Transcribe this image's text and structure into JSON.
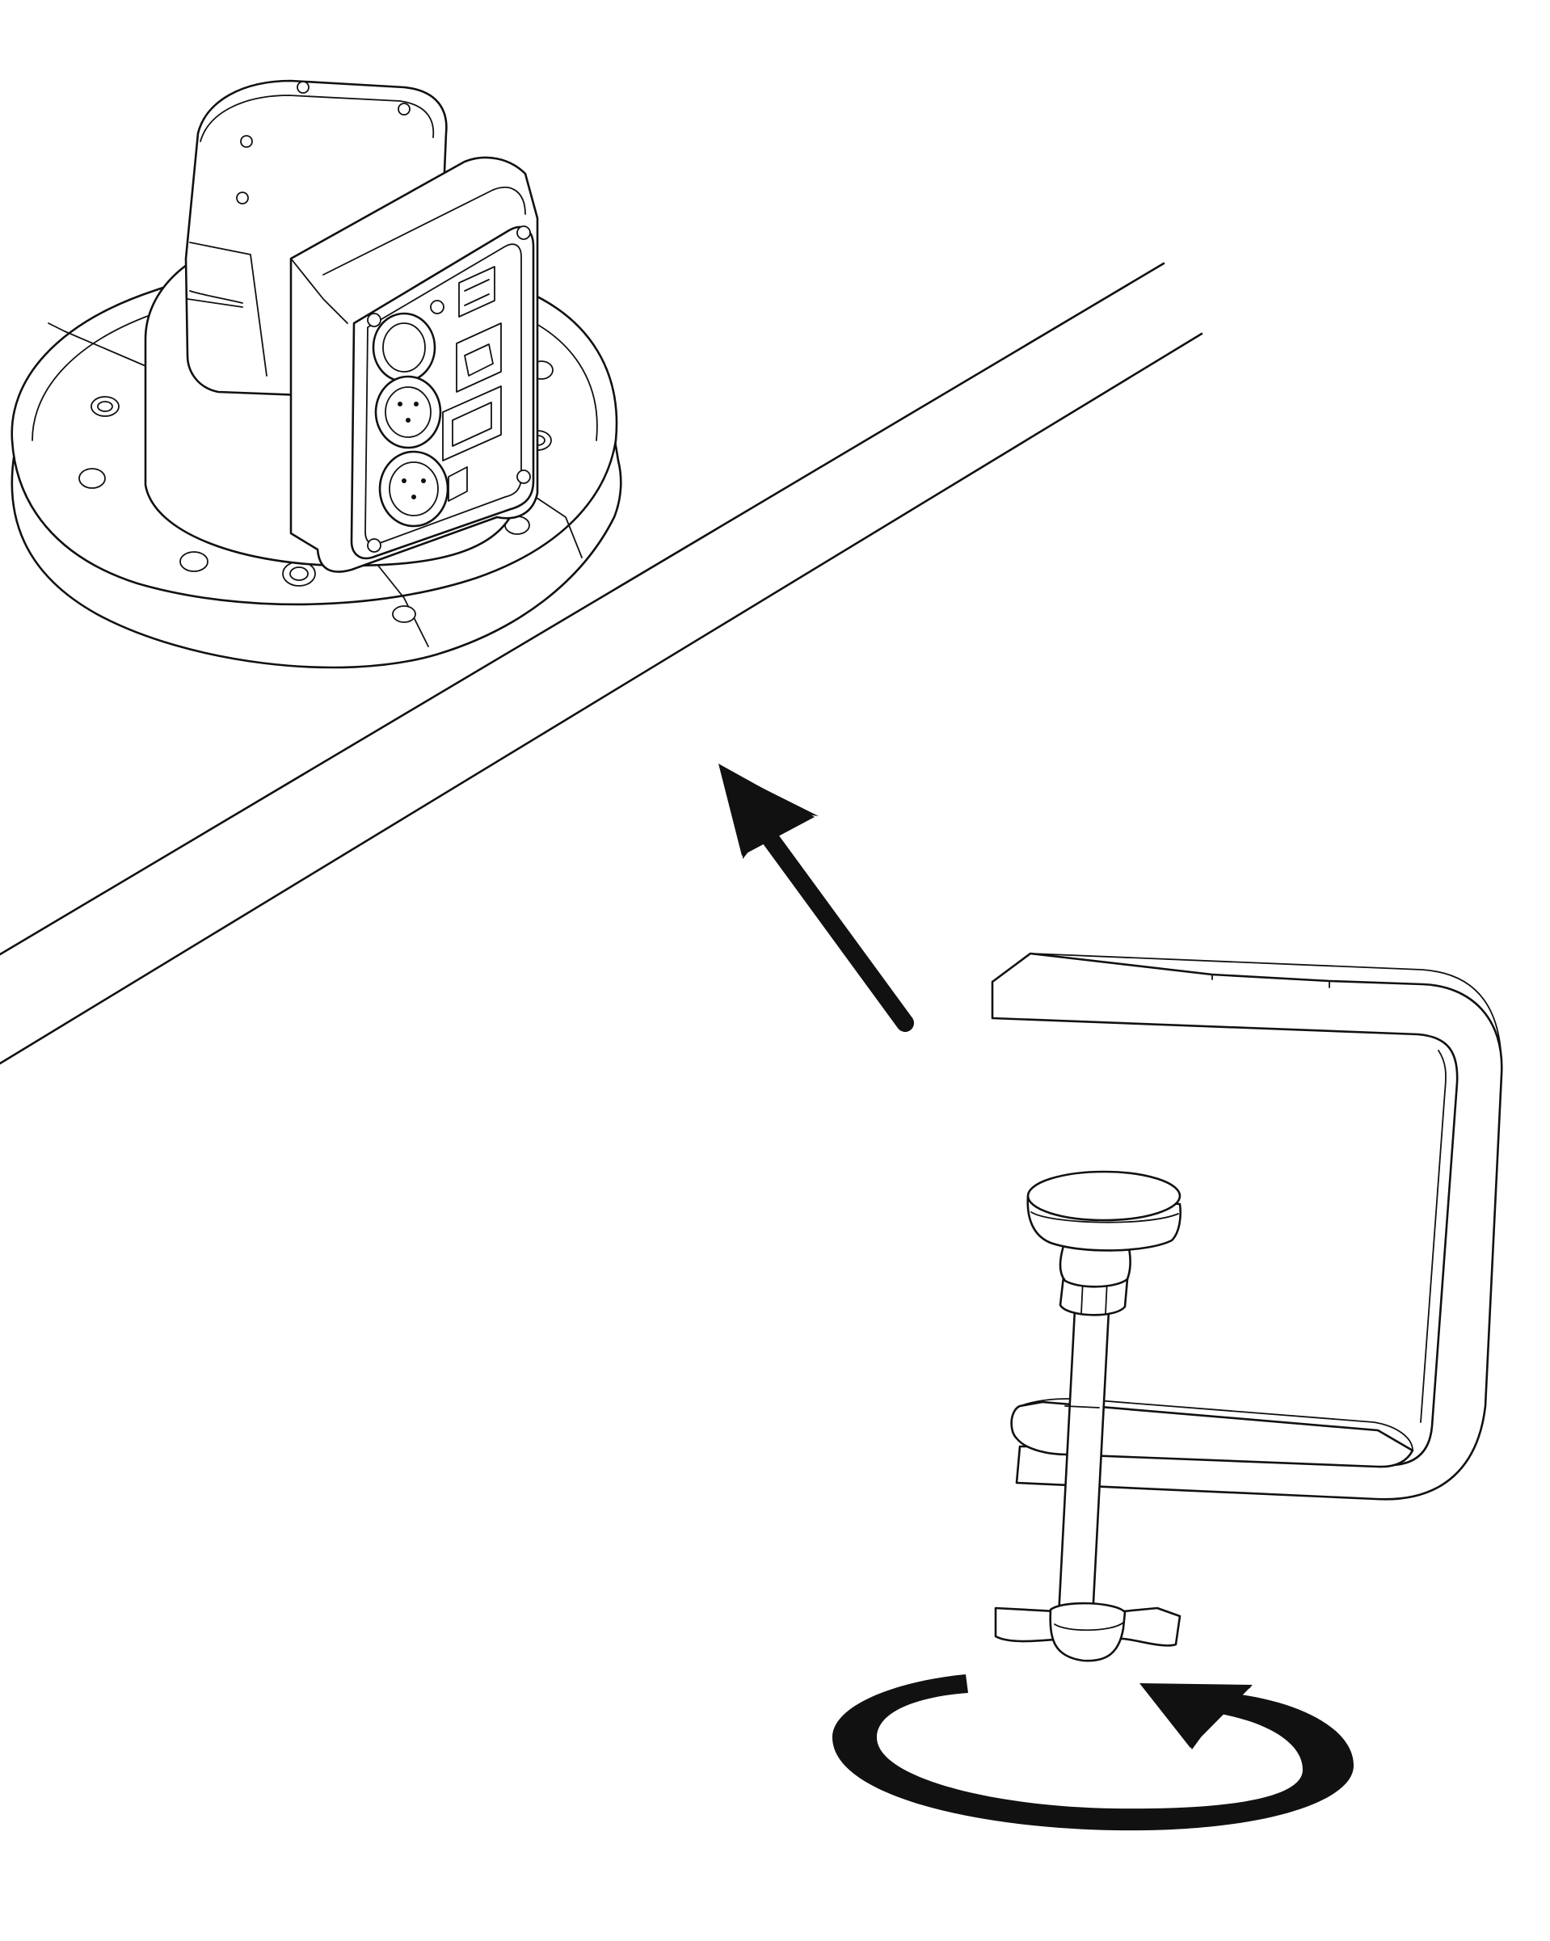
{
  "figure": {
    "subjects": [
      "moving-head-fixture",
      "truss-pipe",
      "mounting-clamp"
    ],
    "icons": [
      "direction-arrow-icon",
      "rotate-tighten-icon"
    ],
    "colors": {
      "line": "#111111",
      "background": "#ffffff"
    }
  }
}
